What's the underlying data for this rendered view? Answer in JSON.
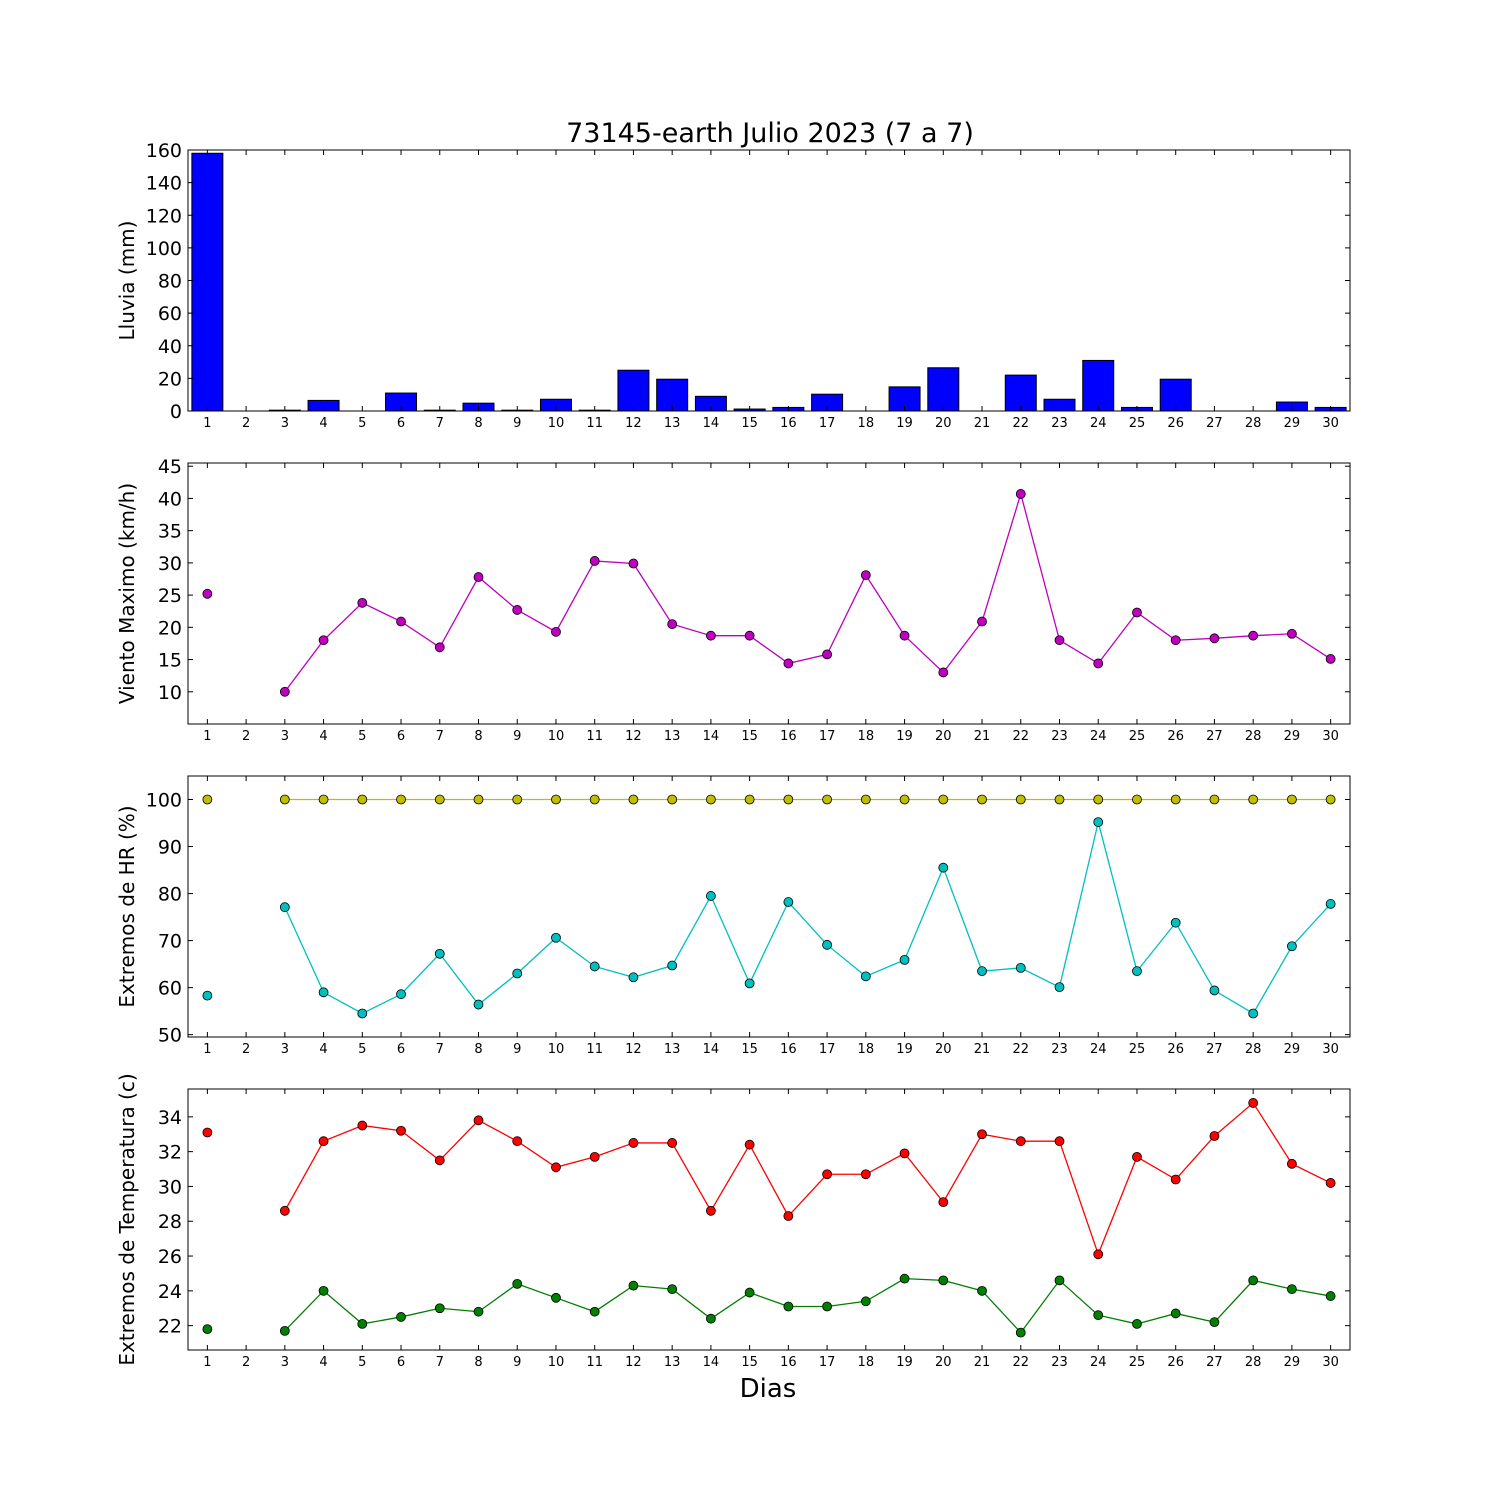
{
  "title": "73145-earth Julio 2023  (7 a 7)",
  "xlabel": "Dias",
  "chart_data": [
    {
      "type": "bar",
      "ylabel": "Lluvia (mm)",
      "x": [
        1,
        2,
        3,
        4,
        5,
        6,
        7,
        8,
        9,
        10,
        11,
        12,
        13,
        14,
        15,
        16,
        17,
        18,
        19,
        20,
        21,
        22,
        23,
        24,
        25,
        26,
        27,
        28,
        29,
        30
      ],
      "ylim": [
        0,
        160
      ],
      "yticks": [
        0,
        20,
        40,
        60,
        80,
        100,
        120,
        140,
        160
      ],
      "xlim": [
        0.5,
        30.5
      ],
      "series": [
        {
          "color": "#0000ff",
          "values": [
            158,
            0,
            0.5,
            6.5,
            0,
            11,
            0.5,
            4.8,
            0.5,
            7.2,
            0.5,
            25,
            19.5,
            9,
            1.2,
            2.2,
            10.3,
            0,
            14.8,
            26.5,
            0,
            22,
            7.2,
            31,
            2.2,
            19.5,
            0,
            0,
            5.5,
            2.2
          ]
        }
      ]
    },
    {
      "type": "line",
      "ylabel": "Viento Maximo (km/h)",
      "x": [
        1,
        2,
        3,
        4,
        5,
        6,
        7,
        8,
        9,
        10,
        11,
        12,
        13,
        14,
        15,
        16,
        17,
        18,
        19,
        20,
        21,
        22,
        23,
        24,
        25,
        26,
        27,
        28,
        29,
        30
      ],
      "ylim": [
        5,
        45.5
      ],
      "yticks": [
        10,
        15,
        20,
        25,
        30,
        35,
        40,
        45
      ],
      "xlim": [
        0.5,
        30.5
      ],
      "series": [
        {
          "color": "#bf00bf",
          "values": [
            25.2,
            null,
            10,
            18,
            23.8,
            20.9,
            16.9,
            27.8,
            22.7,
            19.3,
            30.3,
            29.9,
            20.5,
            18.7,
            18.7,
            14.4,
            15.8,
            28.1,
            18.7,
            13,
            20.9,
            40.7,
            18,
            14.4,
            22.3,
            18,
            18.3,
            18.7,
            19,
            15.1
          ]
        }
      ]
    },
    {
      "type": "line",
      "ylabel": "Extremos de HR (%)",
      "x": [
        1,
        2,
        3,
        4,
        5,
        6,
        7,
        8,
        9,
        10,
        11,
        12,
        13,
        14,
        15,
        16,
        17,
        18,
        19,
        20,
        21,
        22,
        23,
        24,
        25,
        26,
        27,
        28,
        29,
        30
      ],
      "ylim": [
        49.5,
        105
      ],
      "yticks": [
        50,
        60,
        70,
        80,
        90,
        100
      ],
      "xlim": [
        0.5,
        30.5
      ],
      "series": [
        {
          "color": "#bfbf00",
          "values": [
            100,
            null,
            100,
            100,
            100,
            100,
            100,
            100,
            100,
            100,
            100,
            100,
            100,
            100,
            100,
            100,
            100,
            100,
            100,
            100,
            100,
            100,
            100,
            100,
            100,
            100,
            100,
            100,
            100,
            100
          ]
        },
        {
          "color": "#00bfbf",
          "values": [
            58.3,
            null,
            77.1,
            59,
            54.5,
            58.6,
            67.2,
            56.4,
            63,
            70.6,
            64.5,
            62.2,
            64.7,
            79.5,
            60.9,
            78.2,
            69.1,
            62.4,
            65.9,
            85.5,
            63.5,
            64.2,
            60.1,
            95.2,
            63.5,
            73.8,
            59.4,
            54.5,
            68.8,
            77.8
          ]
        }
      ]
    },
    {
      "type": "line",
      "ylabel": "Extremos de Temperatura (c)",
      "x": [
        1,
        2,
        3,
        4,
        5,
        6,
        7,
        8,
        9,
        10,
        11,
        12,
        13,
        14,
        15,
        16,
        17,
        18,
        19,
        20,
        21,
        22,
        23,
        24,
        25,
        26,
        27,
        28,
        29,
        30
      ],
      "ylim": [
        20.6,
        35.6
      ],
      "yticks": [
        22,
        24,
        26,
        28,
        30,
        32,
        34
      ],
      "xlim": [
        0.5,
        30.5
      ],
      "series": [
        {
          "color": "#ff0000",
          "values": [
            33.1,
            null,
            28.6,
            32.6,
            33.5,
            33.2,
            31.5,
            33.8,
            32.6,
            31.1,
            31.7,
            32.5,
            32.5,
            28.6,
            32.4,
            28.3,
            30.7,
            30.7,
            31.9,
            29.1,
            33,
            32.6,
            32.6,
            26.1,
            31.7,
            30.4,
            32.9,
            34.8,
            31.3,
            30.2
          ]
        },
        {
          "color": "#007f00",
          "values": [
            21.8,
            null,
            21.7,
            24,
            22.1,
            22.5,
            23,
            22.8,
            24.4,
            23.6,
            22.8,
            24.3,
            24.1,
            22.4,
            23.9,
            23.1,
            23.1,
            23.4,
            24.7,
            24.6,
            24,
            21.6,
            24.6,
            22.6,
            22.1,
            22.7,
            22.2,
            24.6,
            24.1,
            23.7
          ]
        }
      ]
    }
  ]
}
